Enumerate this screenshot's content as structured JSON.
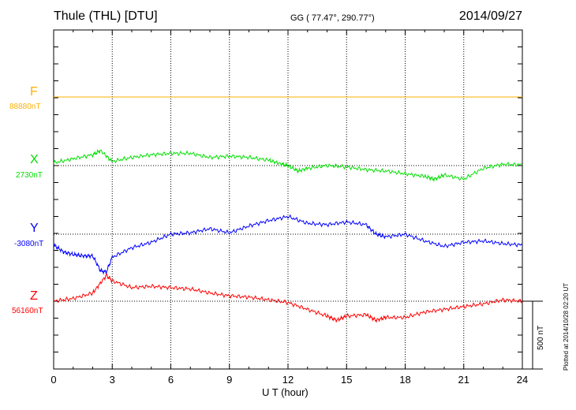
{
  "header": {
    "station": "Thule (THL)  [DTU]",
    "coords": "GG ( 77.47°, 290.77°)",
    "date": "2014/09/27"
  },
  "side_note": "Plotted at 2014/10/28 02:20 UT",
  "scale_bar": {
    "label": "500 nT",
    "value_nT": 500
  },
  "colors": {
    "F": "#ffb000",
    "X": "#00e000",
    "Y": "#0000ff",
    "Z": "#ff0000"
  },
  "chart_data": {
    "type": "line",
    "xlabel": "U T (hour)",
    "xlim": [
      0,
      24
    ],
    "x_ticks": [
      "0",
      "3",
      "6",
      "9",
      "12",
      "15",
      "18",
      "21",
      "24"
    ],
    "grid": true,
    "scale_nT_per_division": 500,
    "components": [
      {
        "name": "F",
        "baseline_label": "88880nT",
        "x": [
          0,
          24
        ],
        "values_nT": [
          0,
          0
        ]
      },
      {
        "name": "X",
        "baseline_label": "2730nT",
        "x": [
          0,
          1,
          2,
          2.4,
          3,
          4,
          5,
          6,
          7,
          8,
          9,
          10,
          11,
          11.7,
          12,
          12.5,
          13,
          14,
          15,
          16,
          17,
          18,
          19,
          19.5,
          20,
          21,
          22,
          23,
          24
        ],
        "values_nT": [
          20,
          50,
          80,
          110,
          30,
          60,
          80,
          90,
          90,
          60,
          70,
          60,
          40,
          10,
          0,
          -40,
          -20,
          0,
          -10,
          -30,
          -40,
          -60,
          -80,
          -100,
          -70,
          -100,
          -20,
          10,
          5
        ]
      },
      {
        "name": "Y",
        "baseline_label": "-3080nT",
        "x": [
          0,
          0.5,
          1,
          1.5,
          2,
          2.4,
          2.7,
          3,
          4,
          5,
          6,
          7,
          8,
          9,
          10,
          11,
          12,
          13,
          14,
          15,
          16,
          16.5,
          17,
          18,
          19,
          20,
          21,
          22,
          23,
          24
        ],
        "values_nT": [
          -80,
          -130,
          -150,
          -160,
          -160,
          -270,
          -280,
          -170,
          -100,
          -60,
          0,
          10,
          40,
          10,
          60,
          100,
          130,
          80,
          70,
          90,
          70,
          0,
          -20,
          0,
          -50,
          -90,
          -60,
          -50,
          -70,
          -80
        ]
      },
      {
        "name": "Z",
        "baseline_label": "56160nT",
        "x": [
          0,
          1,
          2,
          2.7,
          3,
          4,
          5,
          6,
          7,
          8,
          9,
          10,
          11,
          12,
          13,
          14,
          14.5,
          15,
          16,
          16.5,
          17,
          18,
          19,
          20,
          21,
          22,
          23,
          24
        ],
        "values_nT": [
          0,
          20,
          60,
          190,
          150,
          100,
          110,
          100,
          90,
          60,
          40,
          30,
          10,
          -10,
          -60,
          -110,
          -140,
          -110,
          -100,
          -140,
          -120,
          -120,
          -80,
          -60,
          -40,
          -20,
          10,
          0
        ]
      }
    ]
  }
}
